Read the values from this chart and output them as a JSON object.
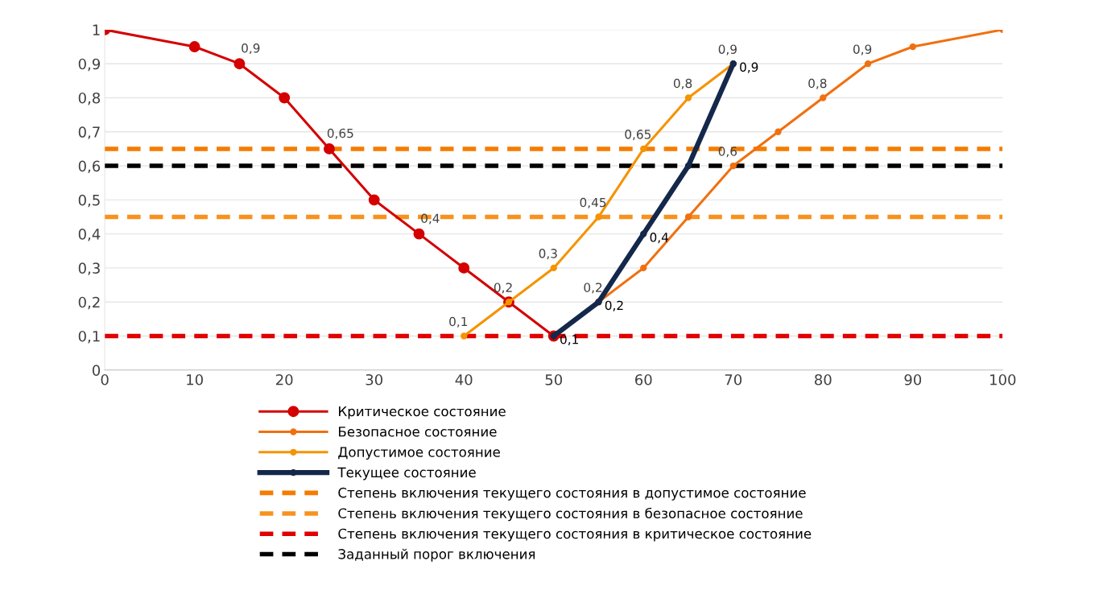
{
  "chart_data": {
    "type": "line",
    "xlim": [
      0,
      100
    ],
    "xticks": [
      0,
      10,
      20,
      30,
      40,
      50,
      60,
      70,
      80,
      90,
      100
    ],
    "ylim": [
      0,
      1
    ],
    "yticks": [
      0,
      {
        "value": 0.1,
        "label": "0,1"
      },
      {
        "value": 0.2,
        "label": "0,2"
      },
      {
        "value": 0.3,
        "label": "0,3"
      },
      {
        "value": 0.4,
        "label": "0,4"
      },
      {
        "value": 0.5,
        "label": "0,5"
      },
      {
        "value": 0.6,
        "label": "0,6"
      },
      {
        "value": 0.7,
        "label": "0,7"
      },
      {
        "value": 0.8,
        "label": "0,8"
      },
      {
        "value": 0.9,
        "label": "0,9"
      },
      1
    ],
    "grid": "y",
    "legend": "bottom",
    "marker": "circle",
    "line_style": "solid",
    "series": [
      {
        "name": "Критическое состояние",
        "color": "#d40000",
        "x": [
          0,
          10,
          15,
          20,
          25,
          30,
          35,
          40,
          45,
          50
        ],
        "values": [
          1,
          0.95,
          0.9,
          0.8,
          0.65,
          0.5,
          0.4,
          0.3,
          0.2,
          0.1
        ],
        "value_labels": [
          null,
          null,
          "0,9",
          null,
          "0,65",
          null,
          "0,4",
          null,
          null,
          null
        ]
      },
      {
        "name": "Безопасное состояние",
        "color": "#f07010",
        "x": [
          55,
          60,
          65,
          70,
          75,
          80,
          85,
          90,
          100
        ],
        "values": [
          0.2,
          0.3,
          0.45,
          0.6,
          0.7,
          0.8,
          0.9,
          0.95,
          1
        ],
        "value_labels": [
          "0,2",
          null,
          null,
          "0,6",
          null,
          "0,8",
          "0,9",
          null,
          null
        ]
      },
      {
        "name": "Допустимое состояние",
        "color": "#f59300",
        "x": [
          40,
          45,
          50,
          55,
          60,
          65,
          70
        ],
        "values": [
          0.1,
          0.2,
          0.3,
          0.45,
          0.65,
          0.8,
          0.9
        ],
        "value_labels": [
          "0,1",
          "0,2",
          "0,3",
          "0,45",
          "0,65",
          "0,8",
          "0,9"
        ]
      },
      {
        "name": "Текущее состояние",
        "color": "#14284b",
        "x": [
          50,
          55,
          60,
          65,
          70
        ],
        "values": [
          0.1,
          0.2,
          0.4,
          0.6,
          0.9
        ],
        "value_labels": [
          "0,1",
          "0,2",
          "0,4",
          null,
          "0,9"
        ]
      },
      {
        "name": "Степень включения текущего состояния в допустимое состояние",
        "color": "#f57c00",
        "x": [
          0,
          100
        ],
        "values": [
          0.65,
          0.65
        ],
        "line_style": "dashed",
        "marker": "none"
      },
      {
        "name": "Степень включения текущего состояния в безопасное состояние",
        "color": "#f7921e",
        "x": [
          0,
          100
        ],
        "values": [
          0.45,
          0.45
        ],
        "line_style": "dashed",
        "marker": "none"
      },
      {
        "name": "Степень включения текущего состояния в критическое состояние",
        "color": "#e00000",
        "x": [
          0,
          100
        ],
        "values": [
          0.1,
          0.1
        ],
        "line_style": "dashed",
        "marker": "none"
      },
      {
        "name": "Заданный порог включения",
        "color": "#000000",
        "x": [
          0,
          100
        ],
        "values": [
          0.6,
          0.6
        ],
        "line_style": "dashed",
        "marker": "none"
      }
    ]
  }
}
